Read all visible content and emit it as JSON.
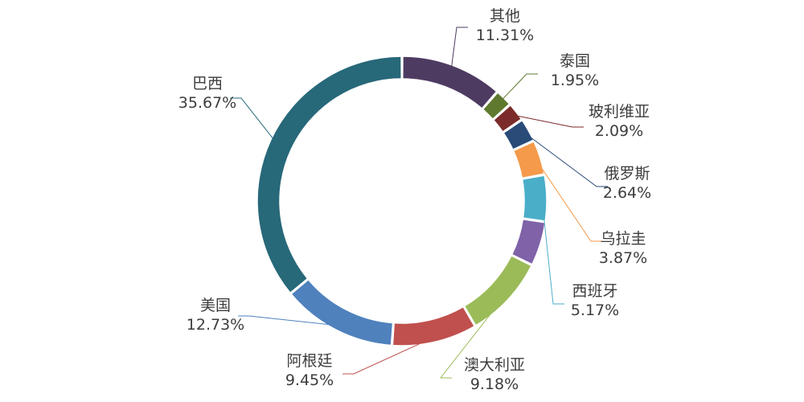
{
  "chart_data": {
    "type": "pie",
    "title": "",
    "slices": [
      {
        "name": "其他",
        "value": 11.31,
        "label": "11.31%",
        "color": "#4e3b61"
      },
      {
        "name": "泰国",
        "value": 1.95,
        "label": "1.95%",
        "color": "#5f7a2e"
      },
      {
        "name": "玻利维亚",
        "value": 2.09,
        "label": "2.09%",
        "color": "#7c2b2b"
      },
      {
        "name": "俄罗斯",
        "value": 2.64,
        "label": "2.64%",
        "color": "#2a4b78"
      },
      {
        "name": "乌拉圭",
        "value": 3.87,
        "label": "3.87%",
        "color": "#f59a4a"
      },
      {
        "name": "西班牙",
        "value": 5.17,
        "label": "5.17%",
        "color": "#4aaec9"
      },
      {
        "name": "",
        "value": 4.94,
        "label": "",
        "color": "#7f62a8"
      },
      {
        "name": "澳大利亚",
        "value": 9.18,
        "label": "9.18%",
        "color": "#9bbb59"
      },
      {
        "name": "阿根廷",
        "value": 9.45,
        "label": "9.45%",
        "color": "#c0504d"
      },
      {
        "name": "美国",
        "value": 12.73,
        "label": "12.73%",
        "color": "#4f81bd"
      },
      {
        "name": "巴西",
        "value": 35.67,
        "label": "35.67%",
        "color": "#276879"
      }
    ],
    "leader_color": "#b0b0b0",
    "legend": "none"
  }
}
